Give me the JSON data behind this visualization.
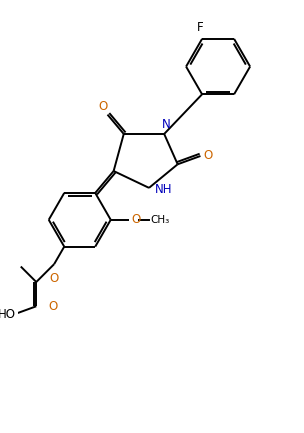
{
  "background_color": "#ffffff",
  "line_color": "#000000",
  "n_color": "#0000bb",
  "o_color": "#cc6600",
  "f_color": "#000000",
  "bond_lw": 1.4,
  "figsize": [
    3.04,
    4.33
  ],
  "dpi": 100,
  "xlim": [
    0,
    8.5
  ],
  "ylim": [
    0,
    12.2
  ]
}
